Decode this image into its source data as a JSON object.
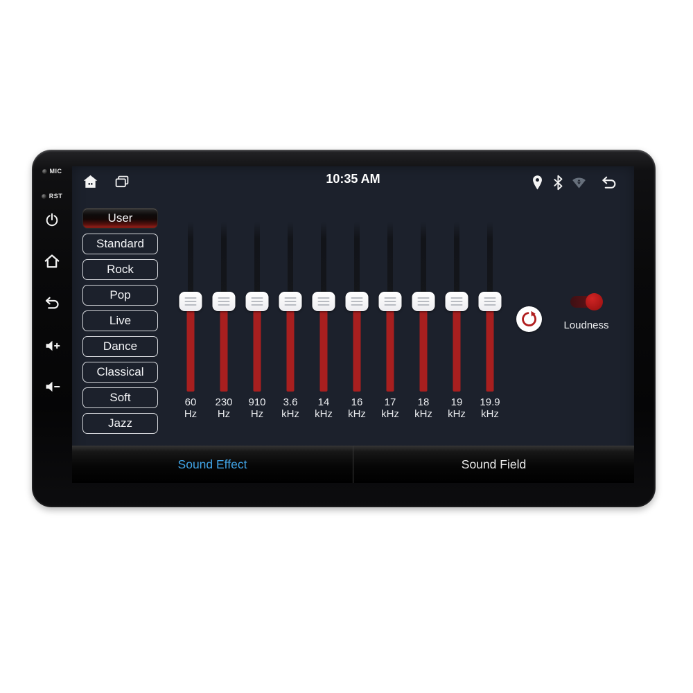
{
  "device": {
    "side_labels": [
      {
        "label": "MIC"
      },
      {
        "label": "RST"
      }
    ],
    "side_buttons": [
      "power",
      "home",
      "back",
      "volume-up",
      "volume-down"
    ]
  },
  "status_bar": {
    "time": "10:35 AM",
    "left_icons": [
      "home",
      "recent-apps"
    ],
    "right_icons": [
      "location",
      "bluetooth",
      "wifi",
      "back"
    ]
  },
  "presets": {
    "items": [
      {
        "label": "User",
        "selected": true
      },
      {
        "label": "Standard",
        "selected": false
      },
      {
        "label": "Rock",
        "selected": false
      },
      {
        "label": "Pop",
        "selected": false
      },
      {
        "label": "Live",
        "selected": false
      },
      {
        "label": "Dance",
        "selected": false
      },
      {
        "label": "Classical",
        "selected": false
      },
      {
        "label": "Soft",
        "selected": false
      },
      {
        "label": "Jazz",
        "selected": false
      }
    ]
  },
  "equalizer": {
    "bands": [
      {
        "freq": "60",
        "unit": "Hz",
        "level_percent": 47
      },
      {
        "freq": "230",
        "unit": "Hz",
        "level_percent": 47
      },
      {
        "freq": "910",
        "unit": "Hz",
        "level_percent": 47
      },
      {
        "freq": "3.6",
        "unit": "kHz",
        "level_percent": 47
      },
      {
        "freq": "14",
        "unit": "kHz",
        "level_percent": 47
      },
      {
        "freq": "16",
        "unit": "kHz",
        "level_percent": 47
      },
      {
        "freq": "17",
        "unit": "kHz",
        "level_percent": 47
      },
      {
        "freq": "18",
        "unit": "kHz",
        "level_percent": 47
      },
      {
        "freq": "19",
        "unit": "kHz",
        "level_percent": 47
      },
      {
        "freq": "19.9",
        "unit": "kHz",
        "level_percent": 47
      }
    ],
    "loudness": {
      "label": "Loudness",
      "on": true
    }
  },
  "tabs": [
    {
      "label": "Sound Effect",
      "active": true
    },
    {
      "label": "Sound Field",
      "active": false
    }
  ],
  "colors": {
    "accent_red": "#a81f1f",
    "accent_blue": "#41a4e6",
    "screen_bg": "#1c212c",
    "toggle_knob": "#b71c1c",
    "toggle_track": "#4d1216"
  }
}
